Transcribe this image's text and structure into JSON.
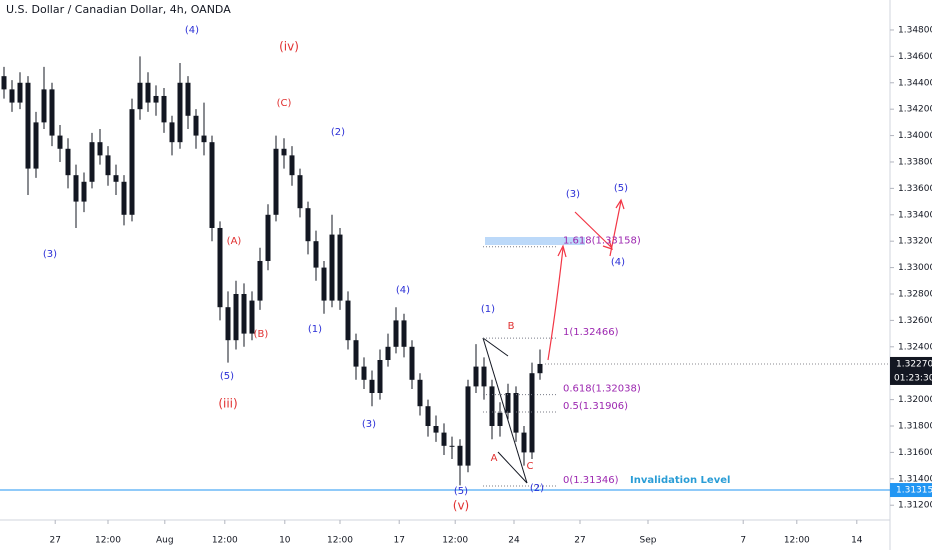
{
  "chart_data": {
    "type": "candlestick",
    "title": "U.S. Dollar / Canadian Dollar, 4h, OANDA",
    "open": [
      1.3445,
      1.3435,
      1.3425,
      1.344,
      1.3375,
      1.341,
      1.3435,
      1.34,
      1.339,
      1.337,
      1.335,
      1.3365,
      1.3395,
      1.3385,
      1.337,
      1.3365,
      1.334,
      1.342,
      1.344,
      1.3425,
      1.343,
      1.341,
      1.3395,
      1.344,
      1.3415,
      1.34,
      1.3395,
      1.333,
      1.327,
      1.3245,
      1.328,
      1.325,
      1.3275,
      1.3305,
      1.334,
      1.339,
      1.3385,
      1.337,
      1.3345,
      1.332,
      1.33,
      1.3275,
      1.3325,
      1.3275,
      1.3245,
      1.3225,
      1.3215,
      1.3205,
      1.323,
      1.324,
      1.326,
      1.324,
      1.3215,
      1.3195,
      1.318,
      1.3175,
      1.3165,
      1.3165,
      1.315,
      1.321,
      1.3225,
      1.321,
      1.318,
      1.319,
      1.3205,
      1.3175,
      1.316,
      1.322
    ],
    "high": [
      1.3452,
      1.3442,
      1.3448,
      1.3445,
      1.3418,
      1.3452,
      1.344,
      1.3408,
      1.3398,
      1.3378,
      1.3372,
      1.3402,
      1.3405,
      1.3392,
      1.3378,
      1.337,
      1.3428,
      1.346,
      1.3448,
      1.3438,
      1.3436,
      1.3415,
      1.3455,
      1.3445,
      1.342,
      1.3425,
      1.34,
      1.3335,
      1.3282,
      1.329,
      1.3288,
      1.3282,
      1.3315,
      1.3348,
      1.34,
      1.3398,
      1.3392,
      1.3375,
      1.335,
      1.3328,
      1.3305,
      1.334,
      1.333,
      1.3282,
      1.325,
      1.3232,
      1.3222,
      1.3238,
      1.325,
      1.327,
      1.3265,
      1.3245,
      1.322,
      1.32,
      1.3188,
      1.3182,
      1.3172,
      1.317,
      1.3215,
      1.3242,
      1.3232,
      1.3215,
      1.3198,
      1.3212,
      1.321,
      1.318,
      1.3228,
      1.3238
    ],
    "low": [
      1.3428,
      1.3418,
      1.342,
      1.3355,
      1.3368,
      1.3405,
      1.3392,
      1.338,
      1.336,
      1.333,
      1.3342,
      1.336,
      1.3378,
      1.3362,
      1.3355,
      1.3332,
      1.3335,
      1.3412,
      1.3418,
      1.3415,
      1.3402,
      1.3385,
      1.339,
      1.3405,
      1.339,
      1.3385,
      1.332,
      1.326,
      1.3228,
      1.3238,
      1.324,
      1.3245,
      1.3268,
      1.3298,
      1.3335,
      1.3375,
      1.3362,
      1.3338,
      1.331,
      1.329,
      1.3265,
      1.327,
      1.3268,
      1.3238,
      1.3215,
      1.3208,
      1.3195,
      1.32,
      1.3225,
      1.3235,
      1.3232,
      1.3208,
      1.3188,
      1.3172,
      1.3168,
      1.3158,
      1.3155,
      1.3135,
      1.3145,
      1.3205,
      1.32,
      1.317,
      1.3172,
      1.3185,
      1.3168,
      1.315,
      1.3155,
      1.3215
    ],
    "close": [
      1.3435,
      1.3425,
      1.344,
      1.3375,
      1.341,
      1.3435,
      1.34,
      1.339,
      1.337,
      1.335,
      1.3365,
      1.3395,
      1.3385,
      1.337,
      1.3365,
      1.334,
      1.342,
      1.344,
      1.3425,
      1.343,
      1.341,
      1.3395,
      1.344,
      1.3415,
      1.34,
      1.3395,
      1.333,
      1.327,
      1.3245,
      1.328,
      1.325,
      1.3275,
      1.3305,
      1.334,
      1.339,
      1.3385,
      1.337,
      1.3345,
      1.332,
      1.33,
      1.3275,
      1.3325,
      1.3275,
      1.3245,
      1.3225,
      1.3215,
      1.3205,
      1.323,
      1.324,
      1.326,
      1.324,
      1.3215,
      1.3195,
      1.318,
      1.3175,
      1.3165,
      1.3165,
      1.315,
      1.321,
      1.3225,
      1.321,
      1.318,
      1.319,
      1.3205,
      1.3175,
      1.316,
      1.322,
      1.3227
    ],
    "color": "#131722",
    "xlim": [
      -0.5,
      110.75
    ],
    "xticks": [
      {
        "value": 6.4,
        "label": "27"
      },
      {
        "value": 13,
        "label": "12:00"
      },
      {
        "value": 20.1,
        "label": "Aug"
      },
      {
        "value": 27.6,
        "label": "12:00"
      },
      {
        "value": 35.1,
        "label": "10"
      },
      {
        "value": 42,
        "label": "12:00"
      },
      {
        "value": 49.4,
        "label": "17"
      },
      {
        "value": 56.4,
        "label": "12:00"
      },
      {
        "value": 63.75,
        "label": "24"
      },
      {
        "value": 72,
        "label": "27"
      },
      {
        "value": 80.5,
        "label": "Sep"
      },
      {
        "value": 92.4,
        "label": "7"
      },
      {
        "value": 99.1,
        "label": "12:00"
      },
      {
        "value": 106.6,
        "label": "14"
      }
    ],
    "ylim": [
      1.31088,
      1.35027
    ],
    "yticks": [
      {
        "value": 1.312,
        "label": "1.31200"
      },
      {
        "value": 1.314,
        "label": "1.31400"
      },
      {
        "value": 1.316,
        "label": "1.31600"
      },
      {
        "value": 1.318,
        "label": "1.31800"
      },
      {
        "value": 1.32,
        "label": "1.32000"
      },
      {
        "value": 1.322,
        "label": "1.32200"
      },
      {
        "value": 1.324,
        "label": "1.32400"
      },
      {
        "value": 1.326,
        "label": "1.32600"
      },
      {
        "value": 1.328,
        "label": "1.32800"
      },
      {
        "value": 1.33,
        "label": "1.33000"
      },
      {
        "value": 1.332,
        "label": "1.33200"
      },
      {
        "value": 1.334,
        "label": "1.33400"
      },
      {
        "value": 1.336,
        "label": "1.33600"
      },
      {
        "value": 1.338,
        "label": "1.33800"
      },
      {
        "value": 1.34,
        "label": "1.34000"
      },
      {
        "value": 1.342,
        "label": "1.34200"
      },
      {
        "value": 1.344,
        "label": "1.34400"
      },
      {
        "value": 1.346,
        "label": "1.34600"
      },
      {
        "value": 1.348,
        "label": "1.34800"
      }
    ],
    "current_price": {
      "value": 1.3227,
      "label": "1.32270",
      "countdown": "01:23:30"
    },
    "invalidation": {
      "value": 1.31315,
      "label": "1.31315",
      "text": "Invalidation Level"
    },
    "fib_levels": [
      {
        "value": 1.33158,
        "label": "1.618(1.33158)"
      },
      {
        "value": 1.32466,
        "label": "1(1.32466)"
      },
      {
        "value": 1.32038,
        "label": "0.618(1.32038)"
      },
      {
        "value": 1.31906,
        "label": "0.5(1.31906)"
      },
      {
        "value": 1.31346,
        "label": "0(1.31346)"
      }
    ],
    "annotations": [
      "(4)",
      "(iv)",
      "(C)",
      "(2)",
      "(3)",
      "(A)",
      "(B)",
      "(1)",
      "(5)",
      "(iii)",
      "(4)",
      "(3)",
      "(1)",
      "B",
      "A",
      "C",
      "(5)",
      "(2)",
      "(v)",
      "(3)",
      "(5)",
      "(4)"
    ]
  }
}
